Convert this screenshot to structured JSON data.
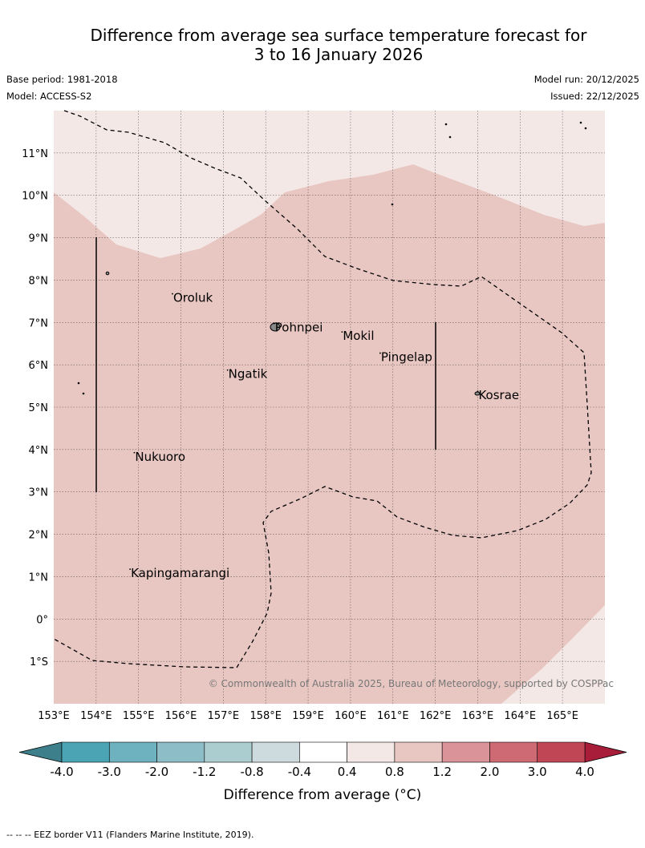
{
  "title": {
    "line1": "Difference from average sea surface temperature forecast for",
    "line2": "3 to 16 January 2026"
  },
  "meta": {
    "base_period": "Base period: 1981-2018",
    "model": "Model: ACCESS-S2",
    "model_run": "Model run: 20/12/2025",
    "issued": "Issued: 22/12/2025"
  },
  "map": {
    "lon_range": [
      153,
      166
    ],
    "lat_range": [
      -2,
      12
    ],
    "lon_ticks": [
      "153°E",
      "154°E",
      "155°E",
      "156°E",
      "157°E",
      "158°E",
      "159°E",
      "160°E",
      "161°E",
      "162°E",
      "163°E",
      "164°E",
      "165°E"
    ],
    "lat_ticks": [
      "11°N",
      "10°N",
      "9°N",
      "8°N",
      "7°N",
      "6°N",
      "5°N",
      "4°N",
      "3°N",
      "2°N",
      "1°N",
      "0°",
      "1°S"
    ],
    "places": [
      {
        "name": "Oroluk",
        "lon": 155.8,
        "lat": 7.6
      },
      {
        "name": "Pohnpei",
        "lon": 158.2,
        "lat": 6.9
      },
      {
        "name": "Mokil",
        "lon": 159.8,
        "lat": 6.7
      },
      {
        "name": "Pingelap",
        "lon": 160.7,
        "lat": 6.2
      },
      {
        "name": "Ngatik",
        "lon": 157.1,
        "lat": 5.8
      },
      {
        "name": "Kosrae",
        "lon": 163.0,
        "lat": 5.3
      },
      {
        "name": "Nukuoro",
        "lon": 154.9,
        "lat": 3.85
      },
      {
        "name": "Kapingamarangi",
        "lon": 154.8,
        "lat": 1.1
      }
    ],
    "copyright": "© Commonwealth of Australia 2025, Bureau of Meteorology, supported by COSPPac",
    "field_colors": {
      "low": "#f4e8e7",
      "mid": "#e8c7c2"
    }
  },
  "legend": {
    "labels": [
      "-4.0",
      "-3.0",
      "-2.0",
      "-1.2",
      "-0.8",
      "-0.4",
      "0.4",
      "0.8",
      "1.2",
      "2.0",
      "3.0",
      "4.0"
    ],
    "colors": [
      "#4ba4b4",
      "#6eb2bf",
      "#8dbdc6",
      "#abcdcf",
      "#cddbdf",
      "#ffffff",
      "#f4e8e7",
      "#e8c7c2",
      "#d99399",
      "#cd6a73",
      "#c04655"
    ],
    "under_color": "#3d7f8a",
    "over_color": "#a81e3a",
    "label": "Difference from average (°C)"
  },
  "footer": {
    "eez_note": "--  --  -- EEZ border V11 (Flanders Marine Institute, 2019)."
  }
}
